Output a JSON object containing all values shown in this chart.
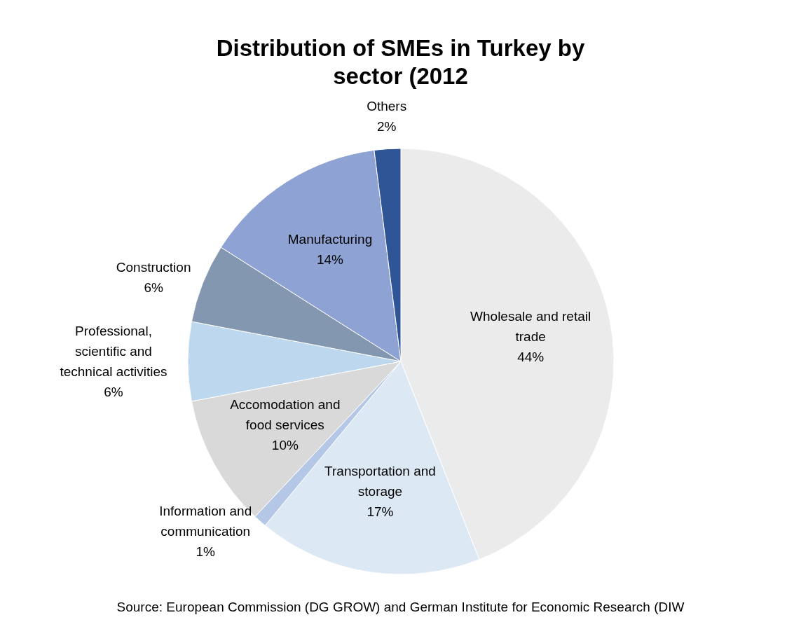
{
  "chart_data": {
    "type": "pie",
    "title": "Distribution of SMEs in Turkey by sector (2012",
    "categories": [
      "Wholesale and retail trade",
      "Transportation and storage",
      "Information and communication",
      "Accomodation and food services",
      "Professional, scientific and technical activities",
      "Construction",
      "Manufacturing",
      "Others"
    ],
    "values": [
      44,
      17,
      1,
      10,
      6,
      6,
      14,
      2
    ],
    "colors": [
      "#ebebeb",
      "#dde8f5",
      "#b4c7e7",
      "#d9d9d9",
      "#bdd7ee",
      "#8497b0",
      "#8fa2d4",
      "#2f5597"
    ],
    "value_labels": [
      "44%",
      "17%",
      "1%",
      "10%",
      "6%",
      "6%",
      "14%",
      "2%"
    ],
    "annotations": [
      "Source: European Commission (DG GROW) and German Institute for Economic Research (DIW"
    ]
  }
}
